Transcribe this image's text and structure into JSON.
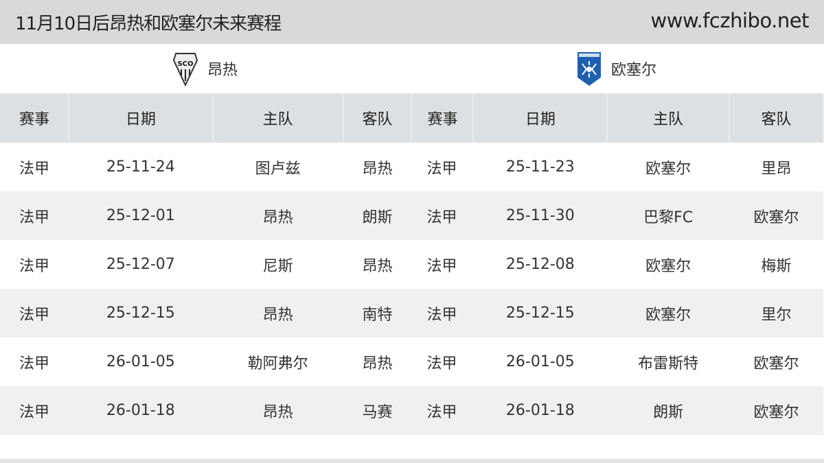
{
  "header": {
    "title": "11月10日后昂热和欧塞尔未来赛程",
    "site": "www.fczhibo.net"
  },
  "teams": [
    {
      "name": "昂热",
      "logo": "angers-sco-crest-icon"
    },
    {
      "name": "欧塞尔",
      "logo": "auxerre-crest-icon",
      "color": "#1f5fb0"
    }
  ],
  "columns": [
    "赛事",
    "日期",
    "主队",
    "客队",
    "赛事",
    "日期",
    "主队",
    "客队"
  ],
  "rows": [
    [
      "法甲",
      "25-11-24",
      "图卢兹",
      "昂热",
      "法甲",
      "25-11-23",
      "欧塞尔",
      "里昂"
    ],
    [
      "法甲",
      "25-12-01",
      "昂热",
      "朗斯",
      "法甲",
      "25-11-30",
      "巴黎FC",
      "欧塞尔"
    ],
    [
      "法甲",
      "25-12-07",
      "尼斯",
      "昂热",
      "法甲",
      "25-12-08",
      "欧塞尔",
      "梅斯"
    ],
    [
      "法甲",
      "25-12-15",
      "昂热",
      "南特",
      "法甲",
      "25-12-15",
      "欧塞尔",
      "里尔"
    ],
    [
      "法甲",
      "26-01-05",
      "勒阿弗尔",
      "昂热",
      "法甲",
      "26-01-05",
      "布雷斯特",
      "欧塞尔"
    ],
    [
      "法甲",
      "26-01-18",
      "昂热",
      "马赛",
      "法甲",
      "26-01-18",
      "朗斯",
      "欧塞尔"
    ]
  ]
}
